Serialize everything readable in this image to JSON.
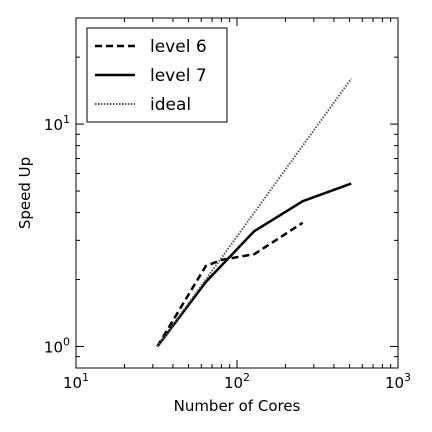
{
  "chart_data": {
    "type": "line",
    "title": "",
    "xlabel": "Number of Cores",
    "ylabel": "Speed Up",
    "xscale": "log",
    "yscale": "log",
    "xlim": [
      10,
      1000
    ],
    "ylim": [
      0.8,
      30
    ],
    "grid": false,
    "legend_position": "top-left",
    "x_ticks": [
      {
        "base": "10",
        "exp": "1",
        "value": 10
      },
      {
        "base": "10",
        "exp": "2",
        "value": 100
      },
      {
        "base": "10",
        "exp": "3",
        "value": 1000
      }
    ],
    "y_ticks": [
      {
        "base": "10",
        "exp": "0",
        "value": 1
      },
      {
        "base": "10",
        "exp": "1",
        "value": 10
      }
    ],
    "series": [
      {
        "name": "level 6",
        "style": "dashed",
        "color": "#000000",
        "x": [
          32,
          64,
          80,
          128,
          256
        ],
        "y": [
          1.0,
          2.3,
          2.45,
          2.6,
          3.6
        ]
      },
      {
        "name": "level 7",
        "style": "solid",
        "color": "#000000",
        "x": [
          32,
          64,
          128,
          256,
          512
        ],
        "y": [
          1.0,
          1.95,
          3.3,
          4.5,
          5.4
        ]
      },
      {
        "name": "ideal",
        "style": "dotted",
        "color": "#555555",
        "x": [
          32,
          512
        ],
        "y": [
          1.0,
          16.0
        ]
      }
    ]
  }
}
